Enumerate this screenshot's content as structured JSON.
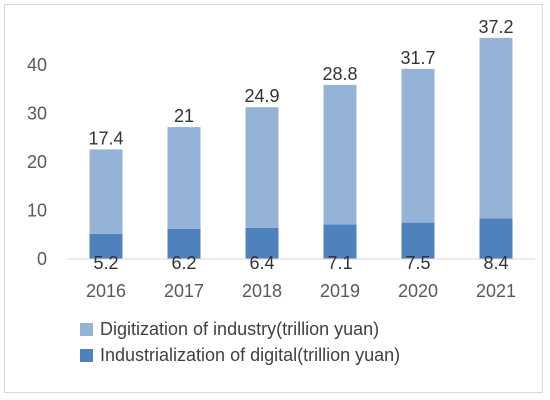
{
  "chart_data": {
    "type": "bar",
    "stacked": true,
    "categories": [
      "2016",
      "2017",
      "2018",
      "2019",
      "2020",
      "2021"
    ],
    "series": [
      {
        "name": "Industrialization of digital(trillion yuan)",
        "color": "#4f81bd",
        "values": [
          5.2,
          6.2,
          6.4,
          7.1,
          7.5,
          8.4
        ],
        "labels": [
          "5.2",
          "6.2",
          "6.4",
          "7.1",
          "7.5",
          "8.4"
        ]
      },
      {
        "name": "Digitization of industry(trillion yuan)",
        "color": "#95b3d7",
        "values": [
          17.4,
          21,
          24.9,
          28.8,
          31.7,
          37.2
        ],
        "labels": [
          "17.4",
          "21",
          "24.9",
          "28.8",
          "31.7",
          "37.2"
        ]
      }
    ],
    "yticks": [
      "0",
      "10",
      "20",
      "30",
      "40"
    ],
    "ylim": [
      0,
      45.6
    ],
    "grid": false,
    "legend": "bottom",
    "title": "",
    "xlabel": "",
    "ylabel": ""
  }
}
